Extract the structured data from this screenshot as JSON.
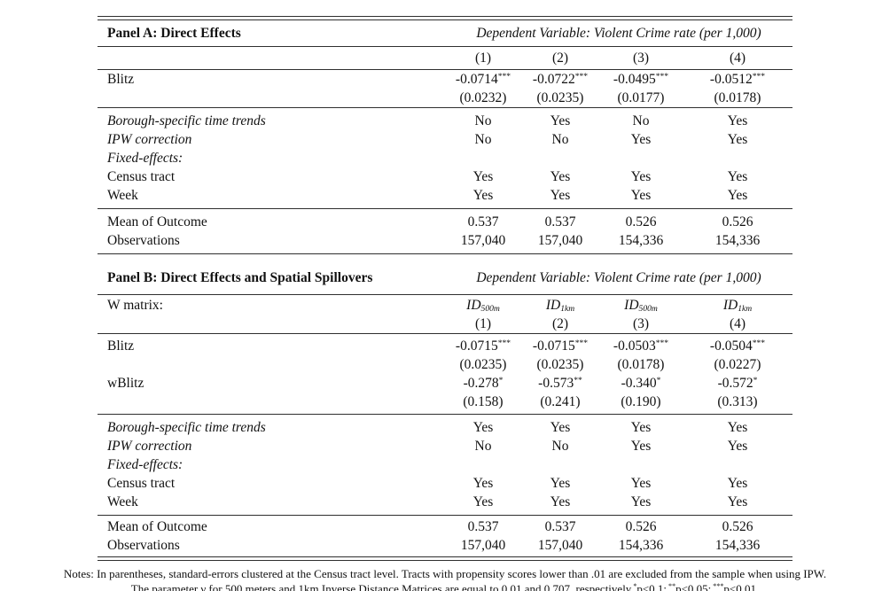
{
  "panelA": {
    "title": "Panel A: Direct Effects",
    "dep_header": "Dependent Variable: Violent Crime rate (per 1,000)",
    "cols": [
      "(1)",
      "(2)",
      "(3)",
      "(4)"
    ],
    "blitz": {
      "label": "Blitz",
      "values": [
        "-0.0714",
        "-0.0722",
        "-0.0495",
        "-0.0512"
      ],
      "stars": [
        "***",
        "***",
        "***",
        "***"
      ],
      "se": [
        "(0.0232)",
        "(0.0235)",
        "(0.0177)",
        "(0.0178)"
      ]
    },
    "trends": {
      "label": "Borough-specific time trends",
      "values": [
        "No",
        "Yes",
        "No",
        "Yes"
      ]
    },
    "ipw": {
      "label": "IPW correction",
      "values": [
        "No",
        "No",
        "Yes",
        "Yes"
      ]
    },
    "fixed_effects_label": "Fixed-effects:",
    "census": {
      "label": "Census tract",
      "values": [
        "Yes",
        "Yes",
        "Yes",
        "Yes"
      ]
    },
    "week": {
      "label": "Week",
      "values": [
        "Yes",
        "Yes",
        "Yes",
        "Yes"
      ]
    },
    "mean": {
      "label": "Mean of Outcome",
      "values": [
        "0.537",
        "0.537",
        "0.526",
        "0.526"
      ]
    },
    "obs": {
      "label": "Observations",
      "values": [
        "157,040",
        "157,040",
        "154,336",
        "154,336"
      ]
    }
  },
  "panelB": {
    "title": "Panel B: Direct Effects and Spatial Spillovers",
    "dep_header": "Dependent Variable: Violent Crime rate (per 1,000)",
    "wmatrix_label": "W matrix:",
    "wmatrix": [
      {
        "base": "ID",
        "sub": "500m"
      },
      {
        "base": "ID",
        "sub": "1km"
      },
      {
        "base": "ID",
        "sub": "500m"
      },
      {
        "base": "ID",
        "sub": "1km"
      }
    ],
    "cols": [
      "(1)",
      "(2)",
      "(3)",
      "(4)"
    ],
    "blitz": {
      "label": "Blitz",
      "values": [
        "-0.0715",
        "-0.0715",
        "-0.0503",
        "-0.0504"
      ],
      "stars": [
        "***",
        "***",
        "***",
        "***"
      ],
      "se": [
        "(0.0235)",
        "(0.0235)",
        "(0.0178)",
        "(0.0227)"
      ]
    },
    "wblitz": {
      "label": "wBlitz",
      "values": [
        "-0.278",
        "-0.573",
        "-0.340",
        "-0.572"
      ],
      "stars": [
        "*",
        "**",
        "*",
        "*"
      ],
      "se": [
        "(0.158)",
        "(0.241)",
        "(0.190)",
        "(0.313)"
      ]
    },
    "trends": {
      "label": "Borough-specific time trends",
      "values": [
        "Yes",
        "Yes",
        "Yes",
        "Yes"
      ]
    },
    "ipw": {
      "label": "IPW correction",
      "values": [
        "No",
        "No",
        "Yes",
        "Yes"
      ]
    },
    "fixed_effects_label": "Fixed-effects:",
    "census": {
      "label": "Census tract",
      "values": [
        "Yes",
        "Yes",
        "Yes",
        "Yes"
      ]
    },
    "week": {
      "label": "Week",
      "values": [
        "Yes",
        "Yes",
        "Yes",
        "Yes"
      ]
    },
    "mean": {
      "label": "Mean of Outcome",
      "values": [
        "0.537",
        "0.537",
        "0.526",
        "0.526"
      ]
    },
    "obs": {
      "label": "Observations",
      "values": [
        "157,040",
        "157,040",
        "154,336",
        "154,336"
      ]
    }
  },
  "notes": {
    "line1": "Notes: In parentheses, standard-errors clustered at the Census tract level. Tracts with propensity scores lower than .01 are excluded from the sample when using IPW.",
    "line2": "The parameter γ for 500 meters and 1km Inverse Distance Matrices are equal to 0.01 and 0.707, respectively",
    "sig": [
      {
        "stars": "*",
        "label": "p<0.1;"
      },
      {
        "stars": "**",
        "label": "p<0.05;"
      },
      {
        "stars": "***",
        "label": "p<0.01."
      }
    ]
  }
}
